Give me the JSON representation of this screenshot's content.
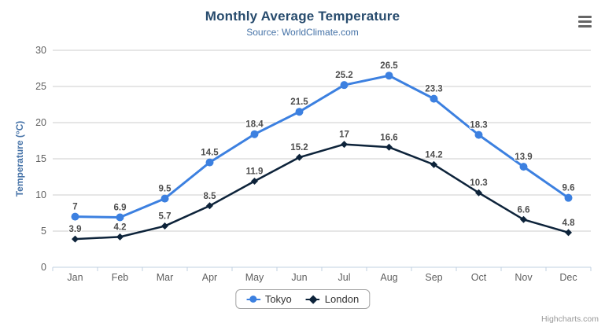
{
  "chart": {
    "title": "Monthly Average Temperature",
    "subtitle": "Source: WorldClimate.com"
  },
  "credits": "Highcharts.com",
  "menu_icon": "hamburger-export-menu",
  "colors": {
    "title": "#274b6d",
    "subtitle": "#4572a7",
    "yaxis_title": "#4572a7",
    "axis_label": "#606060",
    "data_label": "#4d4d4d",
    "grid_line": "#cccccc",
    "axis_line": "#c0d0e0",
    "menu_icon": "#666666",
    "legend_text": "#333333",
    "credits": "#999999"
  },
  "chart_data": {
    "type": "line",
    "title": "Monthly Average Temperature",
    "subtitle": "Source: WorldClimate.com",
    "categories": [
      "Jan",
      "Feb",
      "Mar",
      "Apr",
      "May",
      "Jun",
      "Jul",
      "Aug",
      "Sep",
      "Oct",
      "Nov",
      "Dec"
    ],
    "series": [
      {
        "name": "Tokyo",
        "color": "#3c80e0",
        "marker": "circle",
        "values": [
          7,
          6.9,
          9.5,
          14.5,
          18.4,
          21.5,
          25.2,
          26.5,
          23.3,
          18.3,
          13.9,
          9.6
        ]
      },
      {
        "name": "London",
        "color": "#0d233a",
        "marker": "diamond",
        "values": [
          3.9,
          4.2,
          5.7,
          8.5,
          11.9,
          15.2,
          17,
          16.6,
          14.2,
          10.3,
          6.6,
          4.8
        ]
      }
    ],
    "xlabel": "",
    "ylabel": "Temperature (°C)",
    "ylim": [
      0,
      30
    ],
    "tick_interval": 5,
    "grid": true,
    "legend_position": "bottom",
    "data_labels": true
  }
}
